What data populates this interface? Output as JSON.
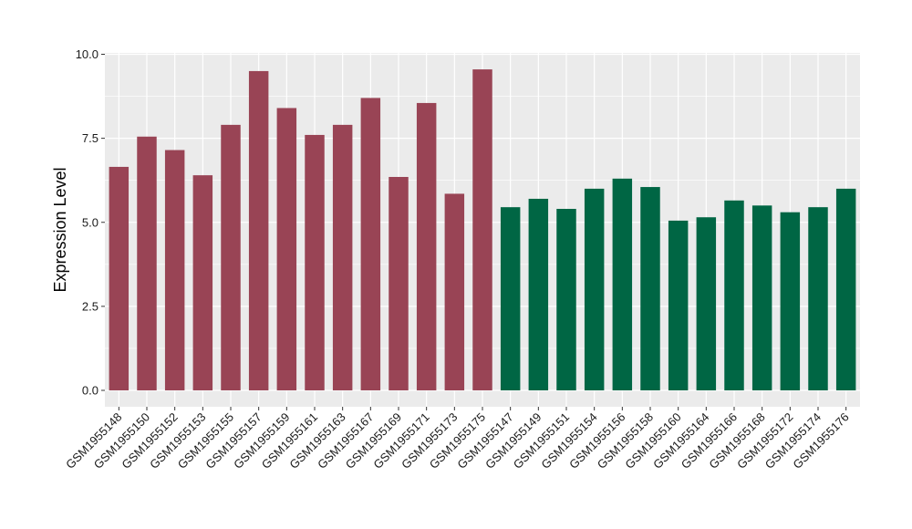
{
  "chart_data": {
    "type": "bar",
    "ylabel": "Expression Level",
    "xlabel": "",
    "ylim": [
      -0.5,
      10.0
    ],
    "yticks": [
      0.0,
      2.5,
      5.0,
      7.5,
      10.0
    ],
    "ytick_labels": [
      "0.0",
      "2.5",
      "5.0",
      "7.5",
      "10.0"
    ],
    "grid": true,
    "categories": [
      "GSM1955148",
      "GSM1955150",
      "GSM1955152",
      "GSM1955153",
      "GSM1955155",
      "GSM1955157",
      "GSM1955159",
      "GSM1955161",
      "GSM1955163",
      "GSM1955167",
      "GSM1955169",
      "GSM1955171",
      "GSM1955173",
      "GSM1955175",
      "GSM1955147",
      "GSM1955149",
      "GSM1955151",
      "GSM1955154",
      "GSM1955156",
      "GSM1955158",
      "GSM1955160",
      "GSM1955164",
      "GSM1955166",
      "GSM1955168",
      "GSM1955172",
      "GSM1955174",
      "GSM1955176"
    ],
    "values": [
      6.65,
      7.55,
      7.15,
      6.4,
      7.9,
      9.5,
      8.4,
      7.6,
      7.9,
      8.7,
      6.35,
      8.55,
      5.85,
      9.55,
      5.45,
      5.7,
      5.4,
      6.0,
      6.3,
      6.05,
      5.05,
      5.15,
      5.65,
      5.5,
      5.3,
      5.45,
      6.0
    ],
    "groups": [
      0,
      0,
      0,
      0,
      0,
      0,
      0,
      0,
      0,
      0,
      0,
      0,
      0,
      0,
      1,
      1,
      1,
      1,
      1,
      1,
      1,
      1,
      1,
      1,
      1,
      1,
      1
    ],
    "group_colors": [
      "#994455",
      "#006644"
    ],
    "panel_background": "#ebebeb",
    "grid_color": "#ffffff"
  }
}
